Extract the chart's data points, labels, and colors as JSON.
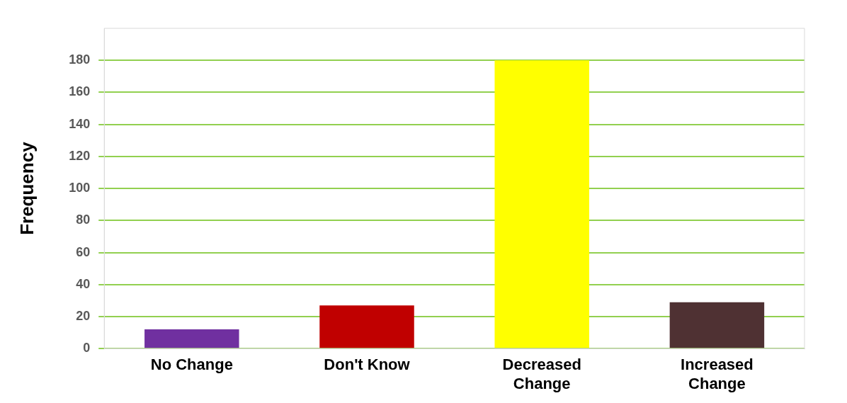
{
  "chart_data": {
    "type": "bar",
    "ylabel": "Frequency",
    "categories": [
      "No Change",
      "Don't Know",
      "Decreased Change",
      "Increased Change"
    ],
    "values": [
      12,
      27,
      180,
      29
    ],
    "colors": [
      "#7030a0",
      "#c00000",
      "#ffff00",
      "#4f3133"
    ],
    "ylim": [
      0,
      200
    ],
    "yticks": [
      0,
      20,
      40,
      60,
      80,
      100,
      120,
      140,
      160,
      180
    ],
    "grid": "y"
  }
}
